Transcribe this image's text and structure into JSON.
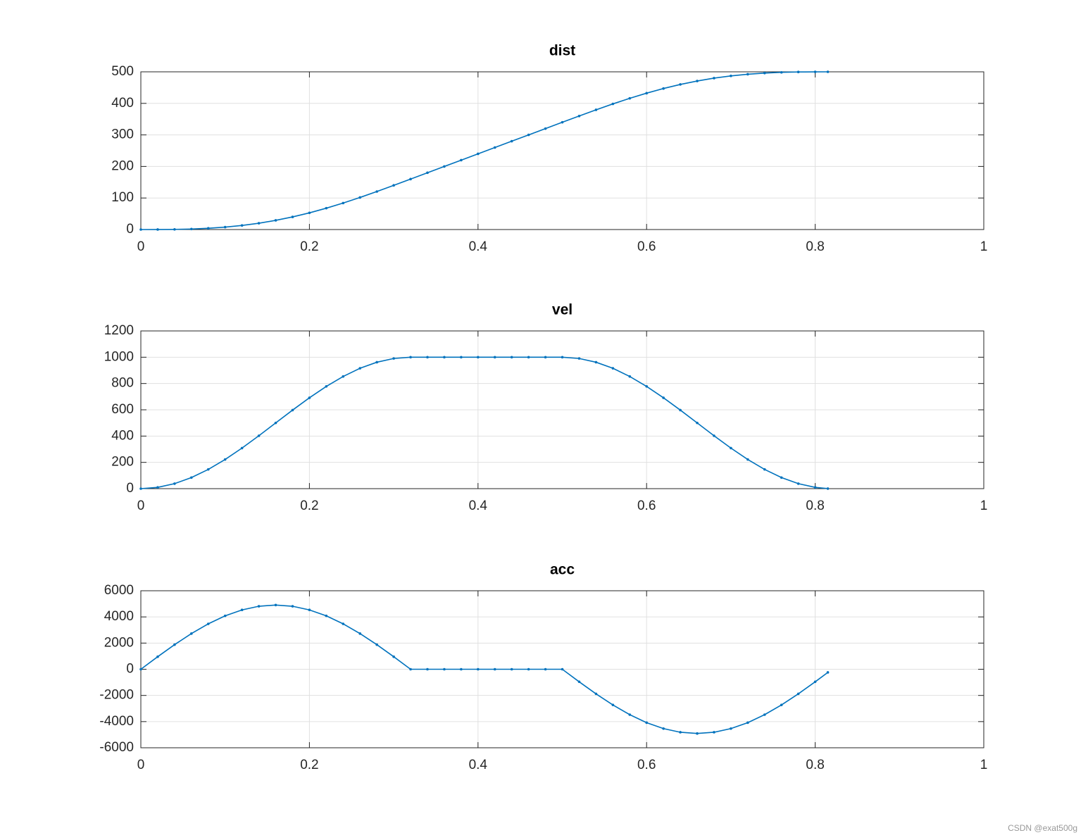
{
  "chart_data": [
    {
      "type": "line",
      "title": "dist",
      "color": "#0072bd",
      "grid": true,
      "x": [
        0,
        0.02,
        0.04,
        0.06,
        0.08,
        0.1,
        0.12,
        0.14,
        0.16,
        0.18,
        0.2,
        0.22,
        0.24,
        0.26,
        0.28,
        0.3,
        0.32,
        0.34,
        0.36,
        0.38,
        0.4,
        0.42,
        0.44,
        0.46,
        0.48,
        0.5,
        0.52,
        0.54,
        0.56,
        0.58,
        0.6,
        0.62,
        0.64,
        0.66,
        0.68,
        0.7,
        0.72,
        0.74,
        0.76,
        0.78,
        0.8,
        0.815
      ],
      "values": [
        0,
        0.06,
        0.51,
        1.7,
        3.99,
        7.65,
        12.9,
        20,
        29.1,
        40,
        52.9,
        67.7,
        84,
        101.7,
        120.5,
        140.1,
        160,
        180,
        200,
        220,
        240,
        260,
        280,
        300,
        320,
        340,
        359.9,
        379.5,
        398.3,
        416,
        432.3,
        447.1,
        460,
        470.9,
        480,
        487.1,
        492.3,
        496,
        498.3,
        499.5,
        499.9,
        500
      ],
      "xlim": [
        0,
        1
      ],
      "xticks": [
        0,
        0.2,
        0.4,
        0.6,
        0.8,
        1
      ],
      "ylim": [
        0,
        500
      ],
      "yticks": [
        0,
        100,
        200,
        300,
        400,
        500
      ]
    },
    {
      "type": "line",
      "title": "vel",
      "color": "#0072bd",
      "grid": true,
      "x": [
        0,
        0.02,
        0.04,
        0.06,
        0.08,
        0.1,
        0.12,
        0.14,
        0.16,
        0.18,
        0.2,
        0.22,
        0.24,
        0.26,
        0.28,
        0.3,
        0.32,
        0.34,
        0.36,
        0.38,
        0.4,
        0.42,
        0.44,
        0.46,
        0.48,
        0.5,
        0.52,
        0.54,
        0.56,
        0.58,
        0.6,
        0.62,
        0.64,
        0.66,
        0.68,
        0.7,
        0.72,
        0.74,
        0.76,
        0.78,
        0.8,
        0.815
      ],
      "values": [
        0,
        9.6,
        38.1,
        84.3,
        146.4,
        222.2,
        308.7,
        402.5,
        500,
        597.6,
        691.4,
        777.8,
        853.6,
        915.8,
        961.9,
        990.4,
        1000,
        1000,
        1000,
        1000,
        1000,
        1000,
        1000,
        1000,
        1000,
        1000,
        990.4,
        961.9,
        915.8,
        853.6,
        777.8,
        691.4,
        597.6,
        500,
        402.5,
        308.7,
        222.2,
        146.4,
        84.3,
        38.1,
        9.6,
        0.6
      ],
      "xlim": [
        0,
        1
      ],
      "xticks": [
        0,
        0.2,
        0.4,
        0.6,
        0.8,
        1
      ],
      "ylim": [
        0,
        1200
      ],
      "yticks": [
        0,
        200,
        400,
        600,
        800,
        1000,
        1200
      ]
    },
    {
      "type": "line",
      "title": "acc",
      "color": "#0072bd",
      "grid": true,
      "x": [
        0,
        0.02,
        0.04,
        0.06,
        0.08,
        0.1,
        0.12,
        0.14,
        0.16,
        0.18,
        0.2,
        0.22,
        0.24,
        0.26,
        0.28,
        0.3,
        0.32,
        0.34,
        0.36,
        0.38,
        0.4,
        0.42,
        0.44,
        0.46,
        0.48,
        0.5,
        0.52,
        0.54,
        0.56,
        0.58,
        0.6,
        0.62,
        0.64,
        0.66,
        0.68,
        0.7,
        0.72,
        0.74,
        0.76,
        0.78,
        0.8,
        0.815
      ],
      "values": [
        0,
        958,
        1879,
        2727,
        3471,
        4082,
        4535,
        4815,
        4909,
        4815,
        4535,
        4082,
        3471,
        2727,
        1879,
        958,
        0,
        0,
        0,
        0,
        0,
        0,
        0,
        0,
        0,
        0,
        -958,
        -1879,
        -2727,
        -3471,
        -4082,
        -4535,
        -4815,
        -4909,
        -4815,
        -4535,
        -4082,
        -3471,
        -2727,
        -1879,
        -958,
        -241
      ],
      "xlim": [
        0,
        1
      ],
      "xticks": [
        0,
        0.2,
        0.4,
        0.6,
        0.8,
        1
      ],
      "ylim": [
        -6000,
        6000
      ],
      "yticks": [
        -6000,
        -4000,
        -2000,
        0,
        2000,
        4000,
        6000
      ]
    }
  ],
  "watermark": "CSDN @exat500g"
}
